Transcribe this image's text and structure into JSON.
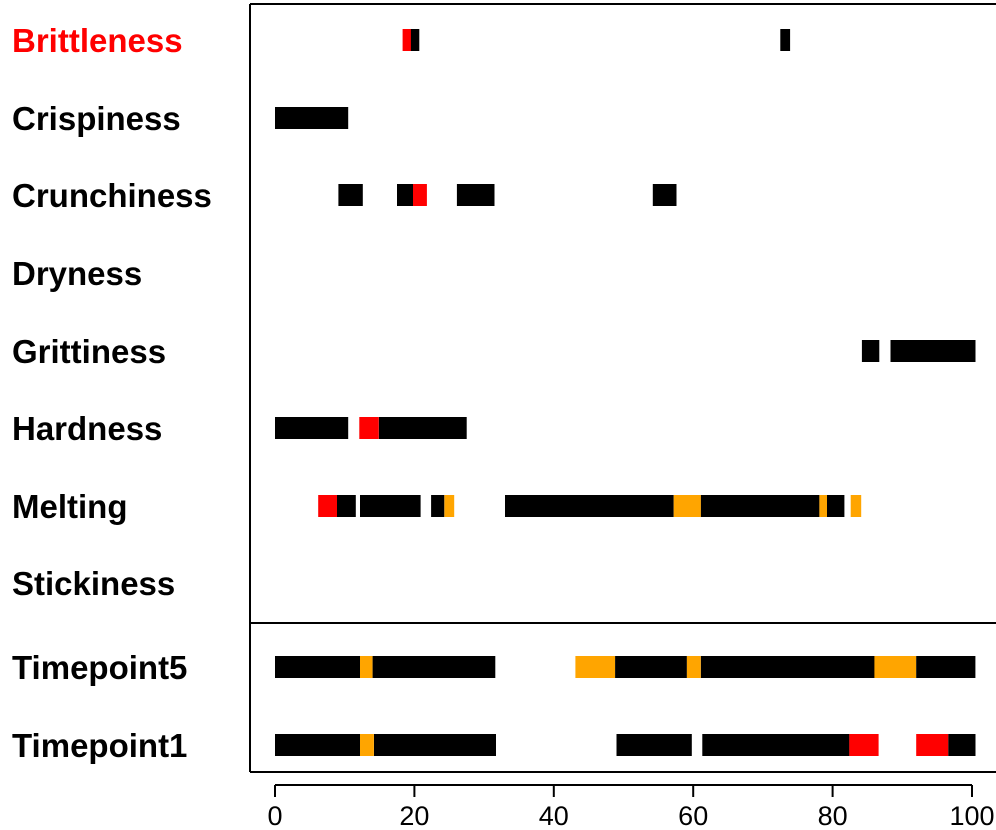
{
  "chart_data": {
    "type": "bar",
    "title": "",
    "xlabel": "",
    "ylabel": "",
    "xlim": [
      0,
      100
    ],
    "x_ticks": [
      "0",
      "20",
      "40",
      "60",
      "80",
      "100"
    ],
    "x_tick_values": [
      0,
      20,
      40,
      60,
      80,
      100
    ],
    "highlight_attribute": "Brittleness",
    "highlight_color": "#ff0000",
    "colors": {
      "black": "#000000",
      "red": "#ff0000",
      "orange": "#ffa500"
    },
    "attributes": [
      {
        "label": "Brittleness",
        "segments": [
          {
            "start": 18.3,
            "end": 19.5,
            "color": "red"
          },
          {
            "start": 19.5,
            "end": 20.7,
            "color": "black"
          },
          {
            "start": 72.5,
            "end": 73.9,
            "color": "black"
          }
        ]
      },
      {
        "label": "Crispiness",
        "segments": [
          {
            "start": 0,
            "end": 10.5,
            "color": "black"
          }
        ]
      },
      {
        "label": "Crunchiness",
        "segments": [
          {
            "start": 9.1,
            "end": 12.6,
            "color": "black"
          },
          {
            "start": 17.5,
            "end": 19.8,
            "color": "black"
          },
          {
            "start": 19.8,
            "end": 21.8,
            "color": "red"
          },
          {
            "start": 26.1,
            "end": 31.5,
            "color": "black"
          },
          {
            "start": 54.2,
            "end": 57.6,
            "color": "black"
          }
        ]
      },
      {
        "label": "Dryness",
        "segments": []
      },
      {
        "label": "Grittiness",
        "segments": [
          {
            "start": 84.2,
            "end": 86.7,
            "color": "black"
          },
          {
            "start": 88.3,
            "end": 100.5,
            "color": "black"
          }
        ]
      },
      {
        "label": "Hardness",
        "segments": [
          {
            "start": 0,
            "end": 10.5,
            "color": "black"
          },
          {
            "start": 12.1,
            "end": 14.9,
            "color": "red"
          },
          {
            "start": 14.9,
            "end": 27.5,
            "color": "black"
          }
        ]
      },
      {
        "label": "Melting",
        "segments": [
          {
            "start": 6.2,
            "end": 8.9,
            "color": "red"
          },
          {
            "start": 8.9,
            "end": 11.6,
            "color": "black"
          },
          {
            "start": 12.2,
            "end": 20.9,
            "color": "black"
          },
          {
            "start": 22.4,
            "end": 24.3,
            "color": "black"
          },
          {
            "start": 24.3,
            "end": 25.7,
            "color": "orange"
          },
          {
            "start": 33.0,
            "end": 57.2,
            "color": "black"
          },
          {
            "start": 57.2,
            "end": 61.1,
            "color": "orange"
          },
          {
            "start": 61.1,
            "end": 78.1,
            "color": "black"
          },
          {
            "start": 78.1,
            "end": 79.2,
            "color": "orange"
          },
          {
            "start": 79.2,
            "end": 81.7,
            "color": "black"
          },
          {
            "start": 82.6,
            "end": 84.1,
            "color": "orange"
          }
        ]
      },
      {
        "label": "Stickiness",
        "segments": []
      }
    ],
    "timepoints": [
      {
        "label": "Timepoint5",
        "segments": [
          {
            "start": 0,
            "end": 12.2,
            "color": "black"
          },
          {
            "start": 12.2,
            "end": 14.0,
            "color": "orange"
          },
          {
            "start": 14.0,
            "end": 31.6,
            "color": "black"
          },
          {
            "start": 43.1,
            "end": 48.8,
            "color": "orange"
          },
          {
            "start": 48.8,
            "end": 59.1,
            "color": "black"
          },
          {
            "start": 59.1,
            "end": 61.1,
            "color": "orange"
          },
          {
            "start": 61.1,
            "end": 86.0,
            "color": "black"
          },
          {
            "start": 86.0,
            "end": 92.0,
            "color": "orange"
          },
          {
            "start": 92.0,
            "end": 100.5,
            "color": "black"
          }
        ]
      },
      {
        "label": "Timepoint1",
        "segments": [
          {
            "start": 0,
            "end": 12.2,
            "color": "black"
          },
          {
            "start": 12.2,
            "end": 14.2,
            "color": "orange"
          },
          {
            "start": 14.2,
            "end": 31.7,
            "color": "black"
          },
          {
            "start": 49.0,
            "end": 59.8,
            "color": "black"
          },
          {
            "start": 61.3,
            "end": 82.4,
            "color": "black"
          },
          {
            "start": 82.4,
            "end": 86.6,
            "color": "red"
          },
          {
            "start": 92.0,
            "end": 96.6,
            "color": "red"
          },
          {
            "start": 96.6,
            "end": 100.5,
            "color": "black"
          }
        ]
      }
    ]
  }
}
